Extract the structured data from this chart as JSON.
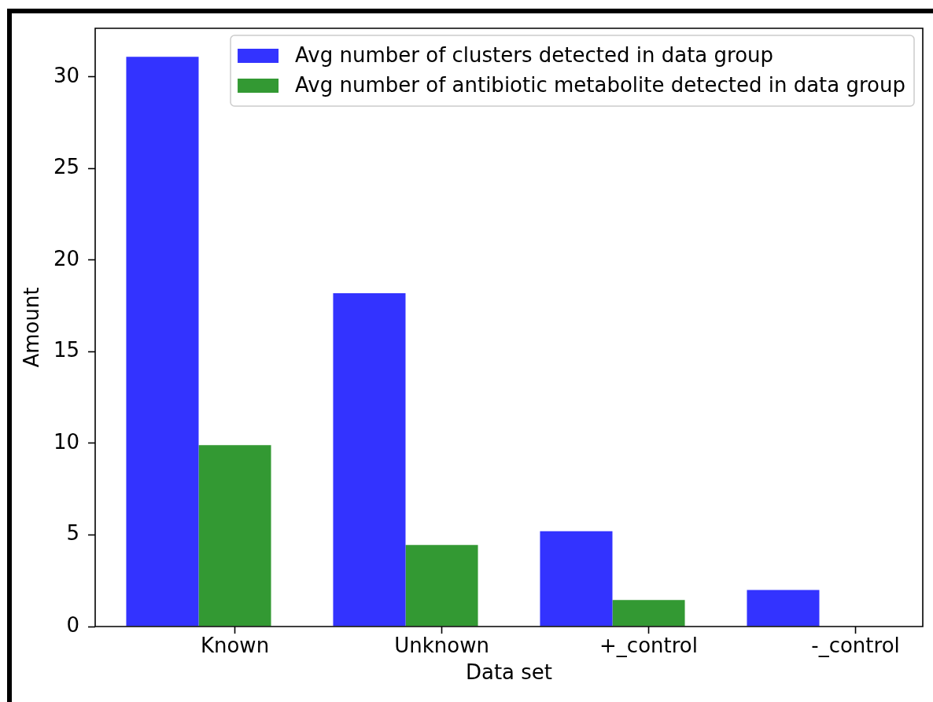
{
  "chart_data": {
    "type": "bar",
    "xlabel": "Data set",
    "ylabel": "Amount",
    "categories": [
      "Known",
      "Unknown",
      "+_control",
      "-_control"
    ],
    "series": [
      {
        "name": "Avg number of clusters detected in data group",
        "color": "#3333ff",
        "values": [
          31.1,
          18.2,
          5.2,
          2.0
        ]
      },
      {
        "name": "Avg number of antibiotic metabolite detected in data group",
        "color": "#339933",
        "values": [
          9.9,
          4.45,
          1.45,
          0
        ]
      }
    ],
    "ylim": [
      0,
      32.66
    ],
    "yticks": [
      0,
      5,
      10,
      15,
      20,
      25,
      30
    ],
    "grid": false,
    "legend": "top right"
  }
}
